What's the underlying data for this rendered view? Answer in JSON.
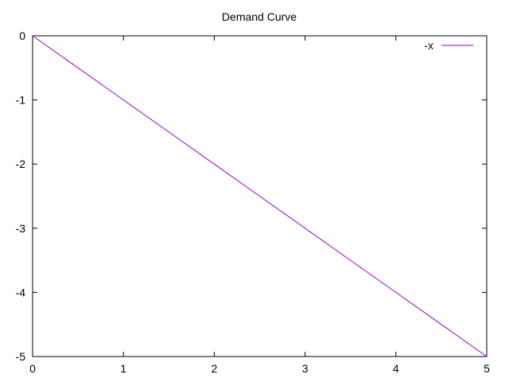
{
  "chart_data": {
    "type": "line",
    "title": "Demand Curve",
    "xlabel": "",
    "ylabel": "",
    "xlim": [
      0,
      5
    ],
    "ylim": [
      -5,
      0
    ],
    "x_ticks": [
      0,
      1,
      2,
      3,
      4,
      5
    ],
    "y_ticks": [
      0,
      -1,
      -2,
      -3,
      -4,
      -5
    ],
    "x_tick_labels": [
      "0",
      "1",
      "2",
      "3",
      "4",
      "5"
    ],
    "y_tick_labels": [
      "0",
      "-1",
      "-2",
      "-3",
      "-4",
      "-5"
    ],
    "grid": false,
    "legend_position": "top-right",
    "series": [
      {
        "name": "-x",
        "color": "#9400d3",
        "x": [
          0,
          0.5,
          1,
          1.5,
          2,
          2.5,
          3,
          3.5,
          4,
          4.5,
          5
        ],
        "y": [
          0,
          -0.5,
          -1,
          -1.5,
          -2,
          -2.5,
          -3,
          -3.5,
          -4,
          -4.5,
          -5
        ]
      }
    ]
  }
}
